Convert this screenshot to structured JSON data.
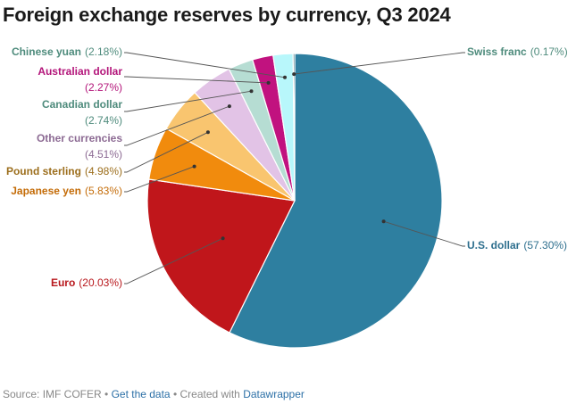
{
  "title": "Foreign exchange reserves by currency, Q3 2024",
  "chart_data": {
    "type": "pie",
    "title": "Foreign exchange reserves by currency, Q3 2024",
    "unit": "%",
    "slices": [
      {
        "name": "U.S. dollar",
        "value": 57.3,
        "label_value": "(57.30%)",
        "color": "#2e7fa0",
        "text_color": "#2e6f8e"
      },
      {
        "name": "Euro",
        "value": 20.03,
        "label_value": "(20.03%)",
        "color": "#c0161b",
        "text_color": "#b8171c"
      },
      {
        "name": "Japanese yen",
        "value": 5.83,
        "label_value": "(5.83%)",
        "color": "#f18b0d",
        "text_color": "#c46c08"
      },
      {
        "name": "Pound sterling",
        "value": 4.98,
        "label_value": "(4.98%)",
        "color": "#f9c56f",
        "text_color": "#9c6e1c"
      },
      {
        "name": "Other currencies",
        "value": 4.51,
        "label_value": "(4.51%)",
        "color": "#e2c3e6",
        "text_color": "#8c6a93"
      },
      {
        "name": "Canadian dollar",
        "value": 2.74,
        "label_value": "(2.74%)",
        "color": "#b6ddd3",
        "text_color": "#4e8b7c"
      },
      {
        "name": "Australian dollar",
        "value": 2.27,
        "label_value": "(2.27%)",
        "color": "#c1127f",
        "text_color": "#b3157a"
      },
      {
        "name": "Chinese yuan",
        "value": 2.18,
        "label_value": "(2.18%)",
        "color": "#b8f7fb",
        "text_color": "#4e8b7c"
      },
      {
        "name": "Swiss franc",
        "value": 0.17,
        "label_value": "(0.17%)",
        "color": "#0f4c5c",
        "text_color": "#4e8b7c"
      }
    ]
  },
  "footer": {
    "source": "Source: IMF COFER",
    "sep1": " • ",
    "get_data": "Get the data",
    "sep2": " • Created with ",
    "tool": "Datawrapper"
  }
}
